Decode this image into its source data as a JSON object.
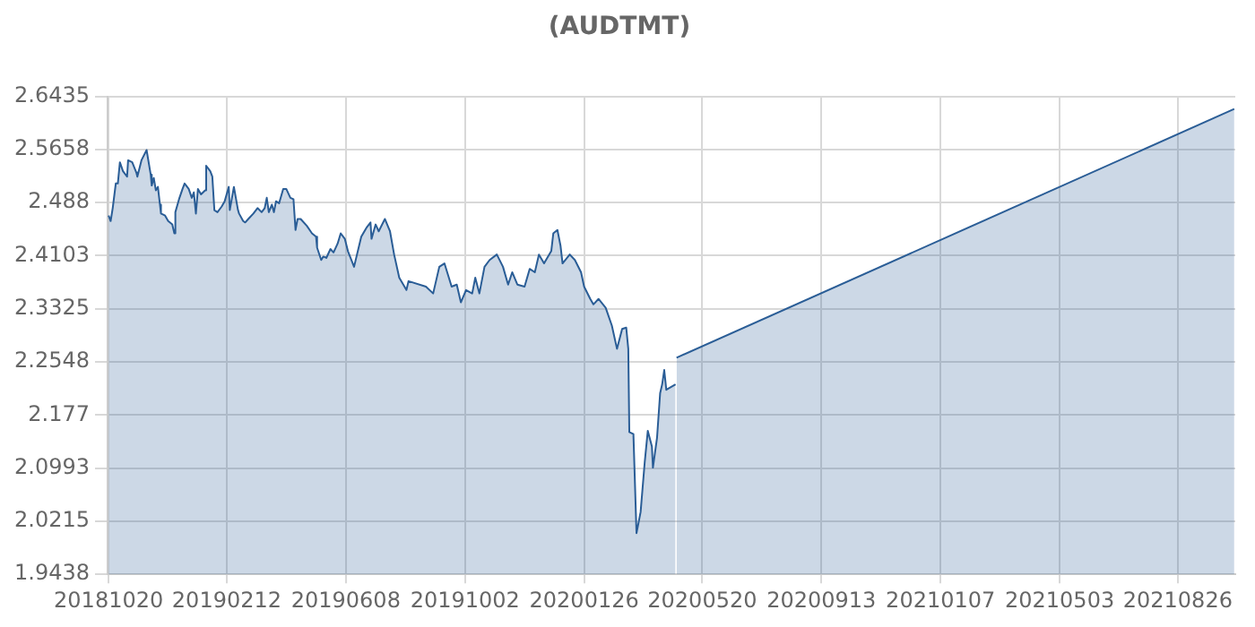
{
  "chart_data": {
    "type": "area",
    "title": "(AUDTMT)",
    "xlim": [
      "2018-10-19",
      "2021-10-21"
    ],
    "xticks": [
      {
        "value": "2018-10-20",
        "label": "20181020"
      },
      {
        "value": "2019-02-12",
        "label": "20190212"
      },
      {
        "value": "2019-06-08",
        "label": "20190608"
      },
      {
        "value": "2019-10-02",
        "label": "20191002"
      },
      {
        "value": "2020-01-26",
        "label": "20200126"
      },
      {
        "value": "2020-05-20",
        "label": "20200520"
      },
      {
        "value": "2020-09-13",
        "label": "20200913"
      },
      {
        "value": "2021-01-07",
        "label": "20210107"
      },
      {
        "value": "2021-05-03",
        "label": "20210503"
      },
      {
        "value": "2021-08-26",
        "label": "20210826"
      }
    ],
    "ylim": [
      1.9438,
      2.6435
    ],
    "yticks": [
      1.9438,
      2.0215,
      2.0993,
      2.177,
      2.2548,
      2.3325,
      2.4103,
      2.488,
      2.5658,
      2.6435
    ],
    "grid": true,
    "legend": false,
    "marker": "none",
    "line_style": "solid",
    "series": [
      {
        "color": "#2a5d96",
        "x": [
          "2018-10-20",
          "2018-10-22",
          "2018-10-24",
          "2018-10-27",
          "2018-10-29",
          "2018-10-31",
          "2018-11-03",
          "2018-11-07",
          "2018-11-08",
          "2018-11-12",
          "2018-11-16",
          "2018-11-17",
          "2018-11-21",
          "2018-11-26",
          "2018-11-30",
          "2018-12-01",
          "2018-12-03",
          "2018-12-05",
          "2018-12-07",
          "2018-12-09",
          "2018-12-10",
          "2018-12-14",
          "2018-12-17",
          "2018-12-21",
          "2018-12-23",
          "2018-12-24",
          "2018-12-28",
          "2018-12-31",
          "2019-01-02",
          "2019-01-06",
          "2019-01-09",
          "2019-01-11",
          "2019-01-13",
          "2019-01-15",
          "2019-01-18",
          "2019-01-22",
          "2019-01-23",
          "2019-01-27",
          "2019-01-29",
          "2019-01-31",
          "2019-02-03",
          "2019-02-07",
          "2019-02-10",
          "2019-02-14",
          "2019-02-15",
          "2019-02-19",
          "2019-02-23",
          "2019-02-24",
          "2019-02-28",
          "2019-03-02",
          "2019-03-05",
          "2019-03-10",
          "2019-03-14",
          "2019-03-18",
          "2019-03-21",
          "2019-03-23",
          "2019-03-25",
          "2019-03-28",
          "2019-03-30",
          "2019-04-01",
          "2019-04-04",
          "2019-04-08",
          "2019-04-11",
          "2019-04-15",
          "2019-04-18",
          "2019-04-20",
          "2019-04-22",
          "2019-04-25",
          "2019-05-01",
          "2019-05-06",
          "2019-05-10",
          "2019-05-11",
          "2019-05-15",
          "2019-05-17",
          "2019-05-20",
          "2019-05-24",
          "2019-05-27",
          "2019-05-31",
          "2019-06-03",
          "2019-06-07",
          "2019-06-10",
          "2019-06-16",
          "2019-06-23",
          "2019-06-28",
          "2019-07-02",
          "2019-07-03",
          "2019-07-07",
          "2019-07-10",
          "2019-07-16",
          "2019-07-21",
          "2019-07-25",
          "2019-07-30",
          "2019-08-06",
          "2019-08-08",
          "2019-08-25",
          "2019-09-01",
          "2019-09-07",
          "2019-09-12",
          "2019-09-19",
          "2019-09-24",
          "2019-09-28",
          "2019-10-03",
          "2019-10-09",
          "2019-10-12",
          "2019-10-16",
          "2019-10-21",
          "2019-10-26",
          "2019-11-02",
          "2019-11-08",
          "2019-11-13",
          "2019-11-17",
          "2019-11-22",
          "2019-11-29",
          "2019-12-04",
          "2019-12-09",
          "2019-12-13",
          "2019-12-18",
          "2019-12-25",
          "2019-12-27",
          "2019-12-31",
          "2020-01-03",
          "2020-01-05",
          "2020-01-12",
          "2020-01-17",
          "2020-01-23",
          "2020-01-26",
          "2020-02-01",
          "2020-02-04",
          "2020-02-09",
          "2020-02-16",
          "2020-02-22",
          "2020-02-27",
          "2020-03-03",
          "2020-03-07",
          "2020-03-09",
          "2020-03-10",
          "2020-03-14",
          "2020-03-17",
          "2020-03-21",
          "2020-03-25",
          "2020-03-28",
          "2020-04-01",
          "2020-04-02",
          "2020-04-06",
          "2020-04-09",
          "2020-04-11",
          "2020-04-13",
          "2020-04-15",
          "2020-04-24"
        ],
        "values": [
          2.469,
          2.461,
          2.48,
          2.516,
          2.516,
          2.547,
          2.534,
          2.526,
          2.55,
          2.547,
          2.532,
          2.526,
          2.55,
          2.565,
          2.529,
          2.513,
          2.524,
          2.506,
          2.511,
          2.485,
          2.472,
          2.469,
          2.461,
          2.456,
          2.443,
          2.474,
          2.495,
          2.508,
          2.516,
          2.508,
          2.495,
          2.503,
          2.472,
          2.508,
          2.5,
          2.506,
          2.542,
          2.534,
          2.526,
          2.477,
          2.474,
          2.482,
          2.49,
          2.511,
          2.477,
          2.511,
          2.477,
          2.472,
          2.461,
          2.459,
          2.464,
          2.472,
          2.48,
          2.474,
          2.48,
          2.495,
          2.474,
          2.485,
          2.474,
          2.49,
          2.487,
          2.508,
          2.508,
          2.495,
          2.493,
          2.448,
          2.464,
          2.464,
          2.454,
          2.443,
          2.438,
          2.422,
          2.404,
          2.409,
          2.407,
          2.42,
          2.415,
          2.428,
          2.443,
          2.435,
          2.417,
          2.394,
          2.438,
          2.451,
          2.459,
          2.435,
          2.456,
          2.446,
          2.464,
          2.446,
          2.412,
          2.378,
          2.36,
          2.373,
          2.365,
          2.355,
          2.394,
          2.399,
          2.365,
          2.368,
          2.342,
          2.36,
          2.355,
          2.378,
          2.355,
          2.394,
          2.404,
          2.412,
          2.394,
          2.368,
          2.386,
          2.368,
          2.365,
          2.391,
          2.386,
          2.412,
          2.399,
          2.417,
          2.443,
          2.448,
          2.425,
          2.399,
          2.412,
          2.404,
          2.386,
          2.365,
          2.347,
          2.339,
          2.347,
          2.334,
          2.308,
          2.274,
          2.303,
          2.305,
          2.274,
          2.152,
          2.149,
          2.004,
          2.035,
          2.108,
          2.154,
          2.131,
          2.1,
          2.144,
          2.209,
          2.222,
          2.243,
          2.214,
          2.222
        ]
      },
      {
        "color": "#2a5d96",
        "x": [
          "2020-04-25",
          "2021-10-20"
        ],
        "values": [
          2.261,
          2.625
        ]
      }
    ]
  }
}
